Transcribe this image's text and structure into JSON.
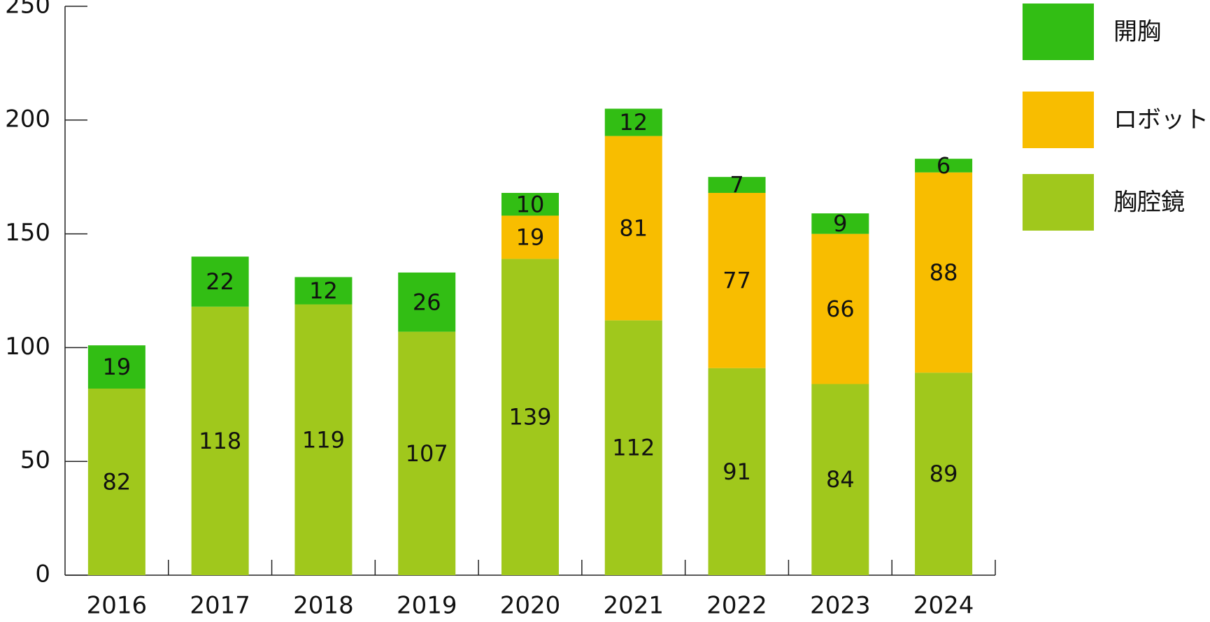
{
  "chart_data": {
    "type": "bar",
    "stacked": true,
    "categories": [
      "2016",
      "2017",
      "2018",
      "2019",
      "2020",
      "2021",
      "2022",
      "2023",
      "2024"
    ],
    "series": [
      {
        "name": "胸腔鏡",
        "color": "#a0c81c",
        "values": [
          82,
          118,
          119,
          107,
          139,
          112,
          91,
          84,
          89
        ]
      },
      {
        "name": "ロボット",
        "color": "#f8bd00",
        "values": [
          0,
          0,
          0,
          0,
          19,
          81,
          77,
          66,
          88
        ]
      },
      {
        "name": "開胸",
        "color": "#32be14",
        "values": [
          19,
          22,
          12,
          26,
          10,
          12,
          7,
          9,
          6
        ]
      }
    ],
    "legend_order": [
      "開胸",
      "ロボット",
      "胸腔鏡"
    ],
    "legend_position": "right",
    "ylim": [
      0,
      250
    ],
    "yticks": [
      "0",
      "50",
      "100",
      "150",
      "200",
      "250"
    ],
    "grid": false
  }
}
